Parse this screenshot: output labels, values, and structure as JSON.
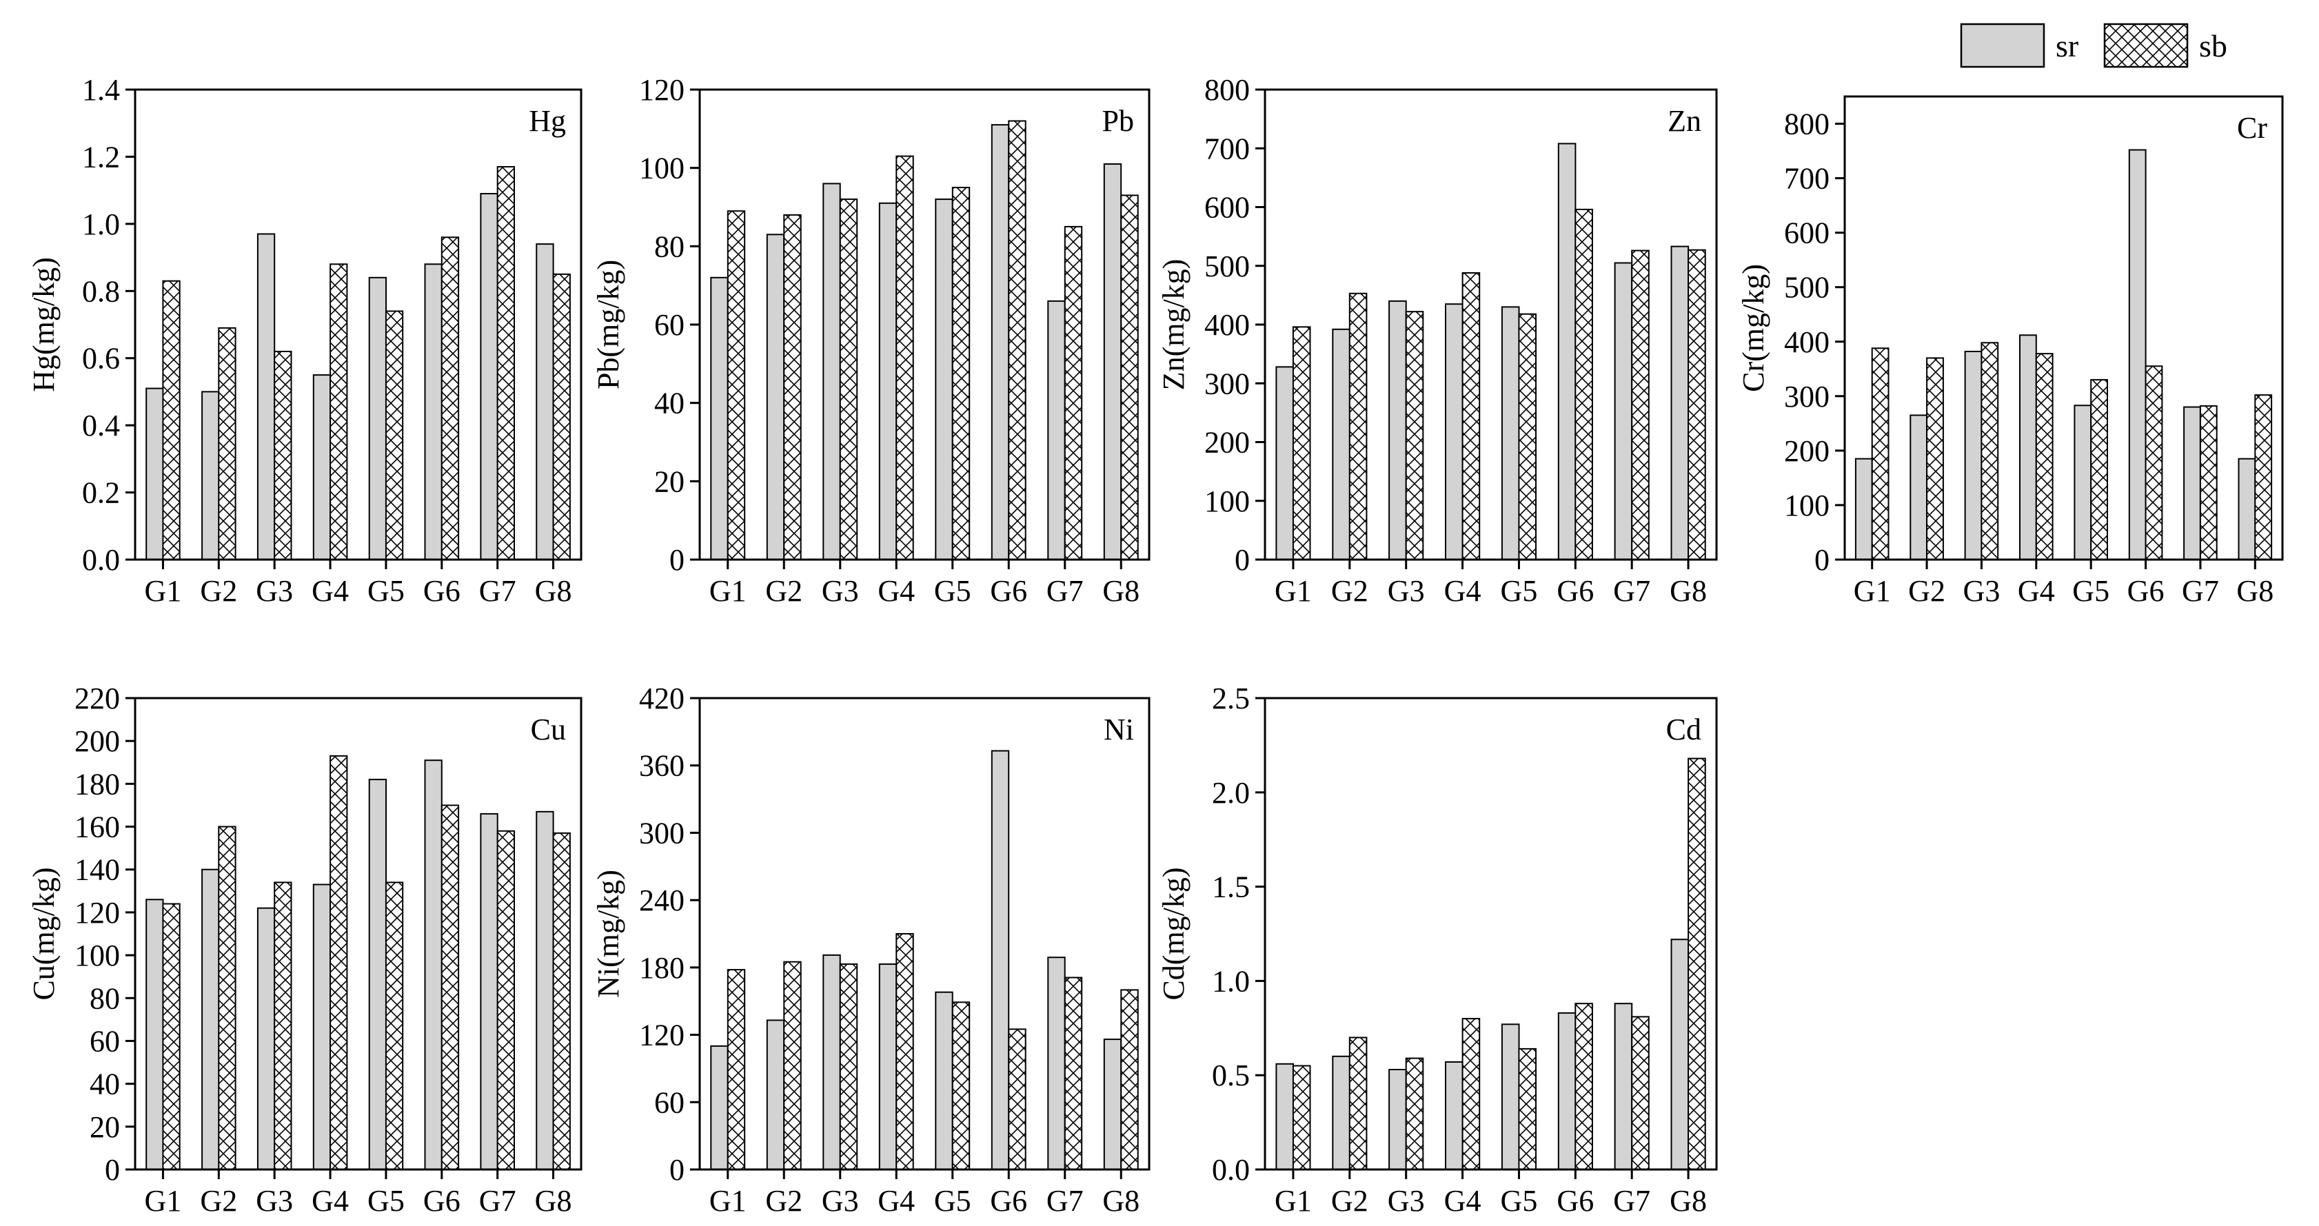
{
  "legend": {
    "position": "top-right",
    "items": [
      {
        "label": "sr",
        "pattern": "solid-gray"
      },
      {
        "label": "sb",
        "pattern": "crosshatch"
      }
    ]
  },
  "colors": {
    "sr_fill": "#d3d3d3",
    "sb_fill": "#ffffff",
    "stroke": "#000000"
  },
  "chart_data": [
    {
      "type": "bar",
      "title": "Hg",
      "ylabel": "Hg(mg/kg)",
      "categories": [
        "G1",
        "G2",
        "G3",
        "G4",
        "G5",
        "G6",
        "G7",
        "G8"
      ],
      "ylim": [
        0,
        1.4
      ],
      "yticks": [
        "0.0",
        "0.2",
        "0.4",
        "0.6",
        "0.8",
        "1.0",
        "1.2",
        "1.4"
      ],
      "series": [
        {
          "name": "sr",
          "values": [
            0.51,
            0.5,
            0.97,
            0.55,
            0.84,
            0.88,
            1.09,
            0.94
          ]
        },
        {
          "name": "sb",
          "values": [
            0.83,
            0.69,
            0.62,
            0.88,
            0.74,
            0.96,
            1.17,
            0.85
          ]
        }
      ]
    },
    {
      "type": "bar",
      "title": "Pb",
      "ylabel": "Pb(mg/kg)",
      "categories": [
        "G1",
        "G2",
        "G3",
        "G4",
        "G5",
        "G6",
        "G7",
        "G8"
      ],
      "ylim": [
        0,
        120
      ],
      "yticks": [
        "0",
        "20",
        "40",
        "60",
        "80",
        "100",
        "120"
      ],
      "series": [
        {
          "name": "sr",
          "values": [
            72,
            83,
            96,
            91,
            92,
            111,
            66,
            101
          ]
        },
        {
          "name": "sb",
          "values": [
            89,
            88,
            92,
            103,
            95,
            112,
            85,
            93
          ]
        }
      ]
    },
    {
      "type": "bar",
      "title": "Zn",
      "ylabel": "Zn(mg/kg)",
      "categories": [
        "G1",
        "G2",
        "G3",
        "G4",
        "G5",
        "G6",
        "G7",
        "G8"
      ],
      "ylim": [
        0,
        800
      ],
      "yticks": [
        "0",
        "100",
        "200",
        "300",
        "400",
        "500",
        "600",
        "700",
        "800"
      ],
      "series": [
        {
          "name": "sr",
          "values": [
            328,
            392,
            440,
            435,
            430,
            708,
            505,
            533
          ]
        },
        {
          "name": "sb",
          "values": [
            396,
            453,
            422,
            488,
            418,
            596,
            526,
            527
          ]
        }
      ]
    },
    {
      "type": "bar",
      "title": "Cr",
      "ylabel": "Cr(mg/kg)",
      "categories": [
        "G1",
        "G2",
        "G3",
        "G4",
        "G5",
        "G6",
        "G7",
        "G8"
      ],
      "ylim": [
        0,
        850
      ],
      "yticks": [
        "0",
        "100",
        "200",
        "300",
        "400",
        "500",
        "600",
        "700",
        "800"
      ],
      "series": [
        {
          "name": "sr",
          "values": [
            185,
            265,
            382,
            412,
            283,
            752,
            280,
            185
          ]
        },
        {
          "name": "sb",
          "values": [
            388,
            370,
            398,
            378,
            330,
            355,
            282,
            302
          ]
        }
      ]
    },
    {
      "type": "bar",
      "title": "Cu",
      "ylabel": "Cu(mg/kg)",
      "categories": [
        "G1",
        "G2",
        "G3",
        "G4",
        "G5",
        "G6",
        "G7",
        "G8"
      ],
      "ylim": [
        0,
        220
      ],
      "yticks": [
        "0",
        "20",
        "40",
        "60",
        "80",
        "100",
        "120",
        "140",
        "160",
        "180",
        "200",
        "220"
      ],
      "series": [
        {
          "name": "sr",
          "values": [
            126,
            140,
            122,
            133,
            182,
            191,
            166,
            167
          ]
        },
        {
          "name": "sb",
          "values": [
            124,
            160,
            134,
            193,
            134,
            170,
            158,
            157
          ]
        }
      ]
    },
    {
      "type": "bar",
      "title": "Ni",
      "ylabel": "Ni(mg/kg)",
      "categories": [
        "G1",
        "G2",
        "G3",
        "G4",
        "G5",
        "G6",
        "G7",
        "G8"
      ],
      "ylim": [
        0,
        420
      ],
      "yticks": [
        "0",
        "60",
        "120",
        "180",
        "240",
        "300",
        "360",
        "420"
      ],
      "series": [
        {
          "name": "sr",
          "values": [
            110,
            133,
            191,
            183,
            158,
            373,
            189,
            116
          ]
        },
        {
          "name": "sb",
          "values": [
            178,
            185,
            183,
            210,
            149,
            125,
            171,
            160
          ]
        }
      ]
    },
    {
      "type": "bar",
      "title": "Cd",
      "ylabel": "Cd(mg/kg)",
      "categories": [
        "G1",
        "G2",
        "G3",
        "G4",
        "G5",
        "G6",
        "G7",
        "G8"
      ],
      "ylim": [
        0,
        2.5
      ],
      "yticks": [
        "0.0",
        "0.5",
        "1.0",
        "1.5",
        "2.0",
        "2.5"
      ],
      "series": [
        {
          "name": "sr",
          "values": [
            0.56,
            0.6,
            0.53,
            0.57,
            0.77,
            0.83,
            0.88,
            1.22
          ]
        },
        {
          "name": "sb",
          "values": [
            0.55,
            0.7,
            0.59,
            0.8,
            0.64,
            0.88,
            0.81,
            2.18
          ]
        }
      ]
    }
  ]
}
